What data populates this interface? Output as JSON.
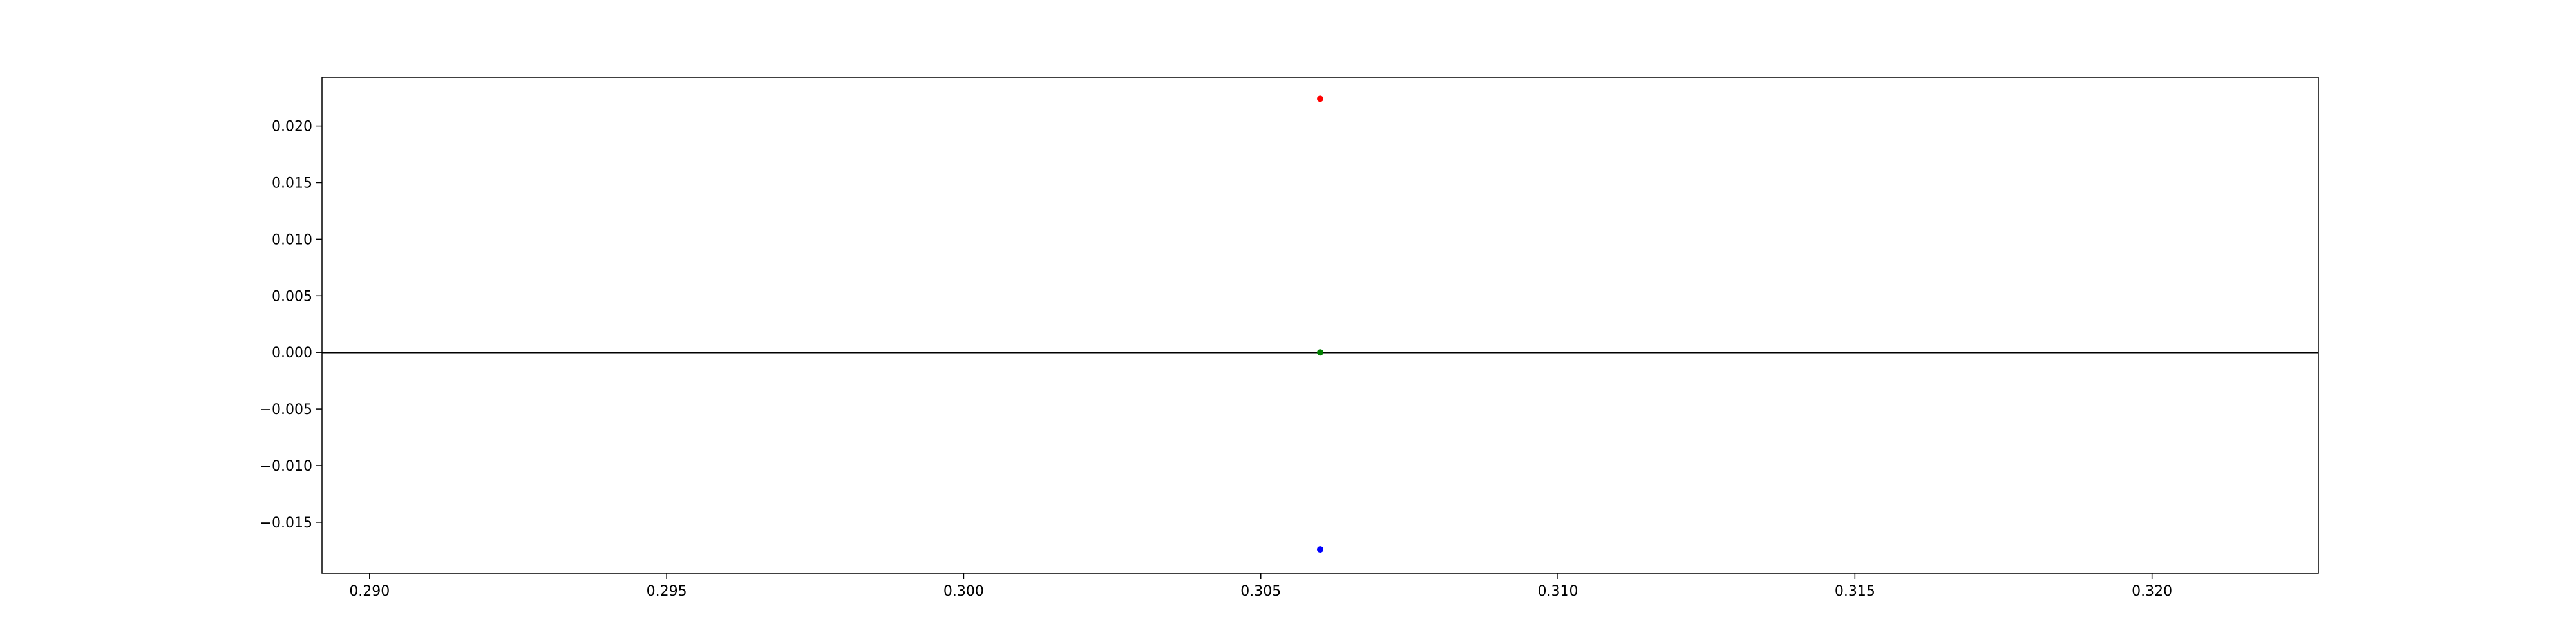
{
  "chart_data": {
    "type": "scatter",
    "title": "",
    "xlabel": "",
    "ylabel": "",
    "xlim": [
      0.2892,
      0.3228
    ],
    "ylim": [
      -0.0195,
      0.0243
    ],
    "grid": false,
    "x_ticks": [
      {
        "value": 0.29,
        "label": "0.290"
      },
      {
        "value": 0.295,
        "label": "0.295"
      },
      {
        "value": 0.3,
        "label": "0.300"
      },
      {
        "value": 0.305,
        "label": "0.305"
      },
      {
        "value": 0.31,
        "label": "0.310"
      },
      {
        "value": 0.315,
        "label": "0.315"
      },
      {
        "value": 0.32,
        "label": "0.320"
      }
    ],
    "y_ticks": [
      {
        "value": 0.02,
        "label": "0.020"
      },
      {
        "value": 0.015,
        "label": "0.015"
      },
      {
        "value": 0.01,
        "label": "0.010"
      },
      {
        "value": 0.005,
        "label": "0.005"
      },
      {
        "value": 0.0,
        "label": "0.000"
      },
      {
        "value": -0.005,
        "label": "−0.005"
      },
      {
        "value": -0.01,
        "label": "−0.010"
      },
      {
        "value": -0.015,
        "label": "−0.015"
      }
    ],
    "reference_line": {
      "y": 0.0,
      "color": "#000000"
    },
    "points": [
      {
        "x": 0.306,
        "y": 0.0224,
        "color": "#ff0000"
      },
      {
        "x": 0.306,
        "y": 0.0,
        "color": "#008000"
      },
      {
        "x": 0.306,
        "y": -0.0174,
        "color": "#0000ff"
      }
    ]
  }
}
